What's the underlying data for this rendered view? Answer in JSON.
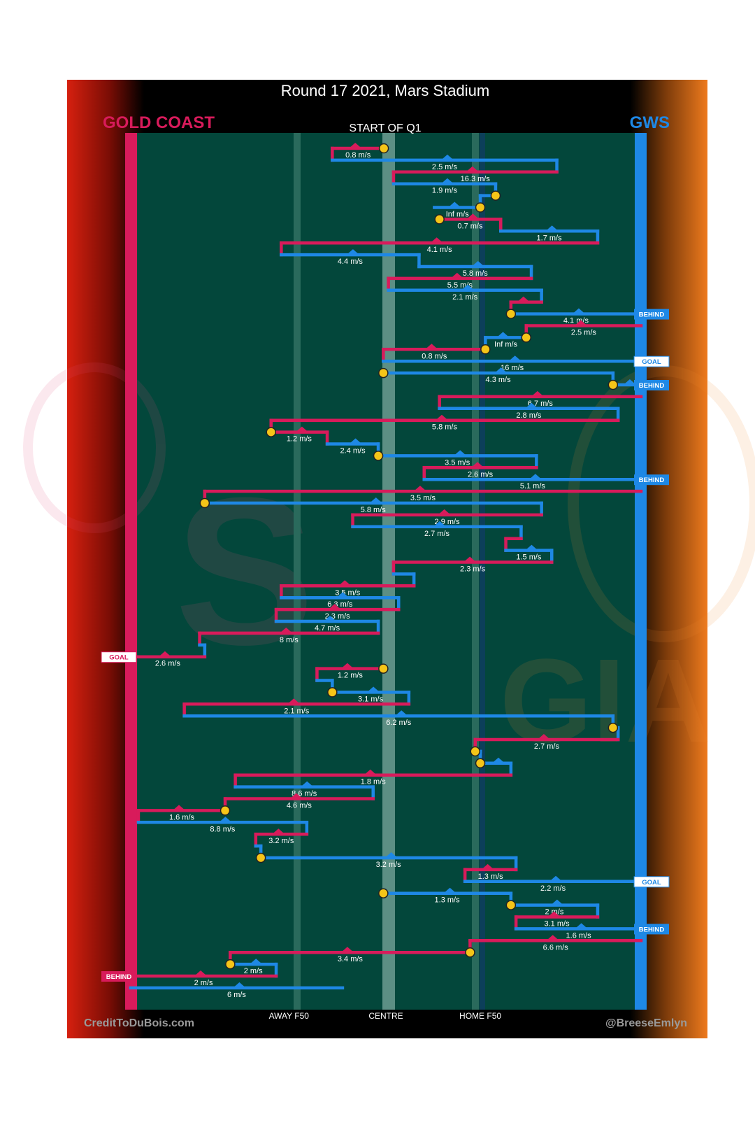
{
  "chart_data": {
    "type": "line",
    "title": "Round 17 2021, Mars Stadium",
    "subtitle": "START OF Q1",
    "teams": {
      "left": {
        "name": "GOLD COAST",
        "color": "#d81b5b"
      },
      "right": {
        "name": "GWS",
        "color": "#1e88e5"
      }
    },
    "x_axis": {
      "min": 0,
      "max": 100,
      "ticks": [
        {
          "label": "AWAY F50",
          "value": 31
        },
        {
          "label": "CENTRE",
          "value": 50
        },
        {
          "label": "HOME F50",
          "value": 68.5
        }
      ]
    },
    "credits": {
      "left": "CreditToDuBois.com",
      "right": "@BreeseEmlyn"
    },
    "chains": [
      {
        "team": "home",
        "x_from": 49.6,
        "x_to": 39.5,
        "label": "0.8 m/s",
        "start_marker": true
      },
      {
        "team": "away",
        "x_from": 39.5,
        "x_to": 83.5,
        "label": "2.5 m/s"
      },
      {
        "team": "home",
        "x_from": 83.5,
        "x_to": 51.5,
        "label": "16.3 m/s"
      },
      {
        "team": "away",
        "x_from": 51.5,
        "x_to": 71.5,
        "label": "1.9 m/s"
      },
      {
        "team": "away",
        "x_from": 71.5,
        "x_to": 68.5,
        "label": "",
        "start_marker": true
      },
      {
        "team": "away",
        "x_from": 68.5,
        "x_to": 59.5,
        "label": "Inf m/s",
        "start_marker": true
      },
      {
        "team": "home",
        "x_from": 60.5,
        "x_to": 72.5,
        "label": "0.7 m/s",
        "start_marker": true
      },
      {
        "team": "away",
        "x_from": 72.5,
        "x_to": 91.5,
        "label": "1.7 m/s"
      },
      {
        "team": "home",
        "x_from": 91.5,
        "x_to": 29.5,
        "label": "4.1 m/s"
      },
      {
        "team": "away",
        "x_from": 29.5,
        "x_to": 56.5,
        "label": "4.4 m/s"
      },
      {
        "team": "away",
        "x_from": 56.5,
        "x_to": 78.5,
        "label": "5.8 m/s"
      },
      {
        "team": "home",
        "x_from": 78.5,
        "x_to": 50.5,
        "label": "5.5 m/s"
      },
      {
        "team": "away",
        "x_from": 50.5,
        "x_to": 80.5,
        "label": "2.1 m/s"
      },
      {
        "team": "home",
        "x_from": 80.5,
        "x_to": 74.5,
        "label": ""
      },
      {
        "team": "away",
        "x_from": 74.5,
        "x_to": 100,
        "label": "4.1 m/s",
        "start_marker": true,
        "end_tag": "BEHIND"
      },
      {
        "team": "home",
        "x_from": 100,
        "x_to": 77.5,
        "label": "2.5 m/s"
      },
      {
        "team": "away",
        "x_from": 77.5,
        "x_to": 69.5,
        "label": "Inf m/s",
        "start_marker": true
      },
      {
        "team": "home",
        "x_from": 69.5,
        "x_to": 49.5,
        "label": "0.8 m/s",
        "start_marker": true
      },
      {
        "team": "away",
        "x_from": 49.5,
        "x_to": 100,
        "label": "16 m/s",
        "end_tag": "GOAL"
      },
      {
        "team": "away",
        "x_from": 49.5,
        "x_to": 94.5,
        "label": "4.3 m/s",
        "start_marker": true
      },
      {
        "team": "away",
        "x_from": 94.5,
        "x_to": 100,
        "label": "",
        "start_marker": true,
        "end_tag": "BEHIND"
      },
      {
        "team": "home",
        "x_from": 100,
        "x_to": 60.5,
        "label": "6.7 m/s"
      },
      {
        "team": "away",
        "x_from": 60.5,
        "x_to": 95.5,
        "label": "2.8 m/s"
      },
      {
        "team": "home",
        "x_from": 95.5,
        "x_to": 27.5,
        "label": "5.8 m/s"
      },
      {
        "team": "home",
        "x_from": 27.5,
        "x_to": 38.5,
        "label": "1.2 m/s",
        "start_marker": true
      },
      {
        "team": "away",
        "x_from": 38.5,
        "x_to": 48.5,
        "label": "2.4 m/s"
      },
      {
        "team": "away",
        "x_from": 48.5,
        "x_to": 79.5,
        "label": "3.5 m/s",
        "start_marker": true
      },
      {
        "team": "home",
        "x_from": 79.5,
        "x_to": 57.5,
        "label": "2.6 m/s"
      },
      {
        "team": "away",
        "x_from": 57.5,
        "x_to": 100,
        "label": "5.1 m/s",
        "end_tag": "BEHIND"
      },
      {
        "team": "home",
        "x_from": 100,
        "x_to": 14.5,
        "label": "3.5 m/s"
      },
      {
        "team": "away",
        "x_from": 14.5,
        "x_to": 80.5,
        "label": "5.8 m/s",
        "start_marker": true
      },
      {
        "team": "home",
        "x_from": 80.5,
        "x_to": 43.5,
        "label": "2.9 m/s"
      },
      {
        "team": "away",
        "x_from": 43.5,
        "x_to": 76.5,
        "label": "2.7 m/s"
      },
      {
        "team": "home",
        "x_from": 76.5,
        "x_to": 73.5,
        "label": ""
      },
      {
        "team": "away",
        "x_from": 73.5,
        "x_to": 82.5,
        "label": "1.5 m/s"
      },
      {
        "team": "home",
        "x_from": 82.5,
        "x_to": 51.5,
        "label": "2.3 m/s"
      },
      {
        "team": "away",
        "x_from": 51.5,
        "x_to": 55.5,
        "label": ""
      },
      {
        "team": "home",
        "x_from": 55.5,
        "x_to": 29.5,
        "label": "3.5 m/s"
      },
      {
        "team": "away",
        "x_from": 29.5,
        "x_to": 52.5,
        "label": "6.3 m/s"
      },
      {
        "team": "home",
        "x_from": 52.5,
        "x_to": 28.5,
        "label": "2.3 m/s"
      },
      {
        "team": "away",
        "x_from": 28.5,
        "x_to": 48.5,
        "label": "4.7 m/s"
      },
      {
        "team": "home",
        "x_from": 48.5,
        "x_to": 13.5,
        "label": "8 m/s"
      },
      {
        "team": "away",
        "x_from": 13.5,
        "x_to": 14.5,
        "label": ""
      },
      {
        "team": "home",
        "x_from": 14.5,
        "x_to": 0,
        "label": "2.6 m/s",
        "end_tag": "GOAL"
      },
      {
        "team": "home",
        "x_from": 49.5,
        "x_to": 36.5,
        "label": "1.2 m/s",
        "start_marker": true
      },
      {
        "team": "away",
        "x_from": 36.5,
        "x_to": 39.5,
        "label": ""
      },
      {
        "team": "away",
        "x_from": 39.5,
        "x_to": 54.5,
        "label": "3.1 m/s",
        "start_marker": true
      },
      {
        "team": "home",
        "x_from": 54.5,
        "x_to": 10.5,
        "label": "2.1 m/s"
      },
      {
        "team": "away",
        "x_from": 10.5,
        "x_to": 94.5,
        "label": "6.2 m/s"
      },
      {
        "team": "away",
        "x_from": 94.5,
        "x_to": 95.5,
        "label": "",
        "start_marker": true
      },
      {
        "team": "home",
        "x_from": 95.5,
        "x_to": 67.5,
        "label": "2.7 m/s"
      },
      {
        "team": "away",
        "x_from": 67.5,
        "x_to": 68.5,
        "label": "",
        "start_marker": true
      },
      {
        "team": "away",
        "x_from": 68.5,
        "x_to": 74.5,
        "label": "",
        "start_marker": true
      },
      {
        "team": "home",
        "x_from": 74.5,
        "x_to": 20.5,
        "label": "1.8 m/s"
      },
      {
        "team": "away",
        "x_from": 20.5,
        "x_to": 47.5,
        "label": "8.6 m/s"
      },
      {
        "team": "home",
        "x_from": 47.5,
        "x_to": 18.5,
        "label": "4.6 m/s"
      },
      {
        "team": "home",
        "x_from": 18.5,
        "x_to": 1.5,
        "label": "1.6 m/s",
        "start_marker": true
      },
      {
        "team": "away",
        "x_from": 1.5,
        "x_to": 34.5,
        "label": "8.8 m/s"
      },
      {
        "team": "home",
        "x_from": 34.5,
        "x_to": 24.5,
        "label": "3.2 m/s"
      },
      {
        "team": "away",
        "x_from": 24.5,
        "x_to": 25.5,
        "label": ""
      },
      {
        "team": "away",
        "x_from": 25.5,
        "x_to": 75.5,
        "label": "3.2 m/s",
        "start_marker": true
      },
      {
        "team": "home",
        "x_from": 75.5,
        "x_to": 65.5,
        "label": "1.3 m/s"
      },
      {
        "team": "away",
        "x_from": 65.5,
        "x_to": 100,
        "label": "2.2 m/s",
        "end_tag": "GOAL"
      },
      {
        "team": "away",
        "x_from": 49.5,
        "x_to": 74.5,
        "label": "1.3 m/s",
        "start_marker": true
      },
      {
        "team": "away",
        "x_from": 74.5,
        "x_to": 91.5,
        "label": "2 m/s",
        "start_marker": true
      },
      {
        "team": "home",
        "x_from": 91.5,
        "x_to": 75.5,
        "label": "3.1 m/s"
      },
      {
        "team": "away",
        "x_from": 75.5,
        "x_to": 100,
        "label": "1.6 m/s",
        "end_tag": "BEHIND"
      },
      {
        "team": "home",
        "x_from": 100,
        "x_to": 66.5,
        "label": "6.6 m/s"
      },
      {
        "team": "home",
        "x_from": 66.5,
        "x_to": 19.5,
        "label": "3.4 m/s",
        "start_marker": true
      },
      {
        "team": "away",
        "x_from": 19.5,
        "x_to": 28.5,
        "label": "2 m/s",
        "start_marker": true
      },
      {
        "team": "home",
        "x_from": 28.5,
        "x_to": 0,
        "label": "2 m/s",
        "end_tag": "BEHIND"
      },
      {
        "team": "away",
        "x_from": 0,
        "x_to": 41.5,
        "label": "6 m/s"
      }
    ]
  }
}
